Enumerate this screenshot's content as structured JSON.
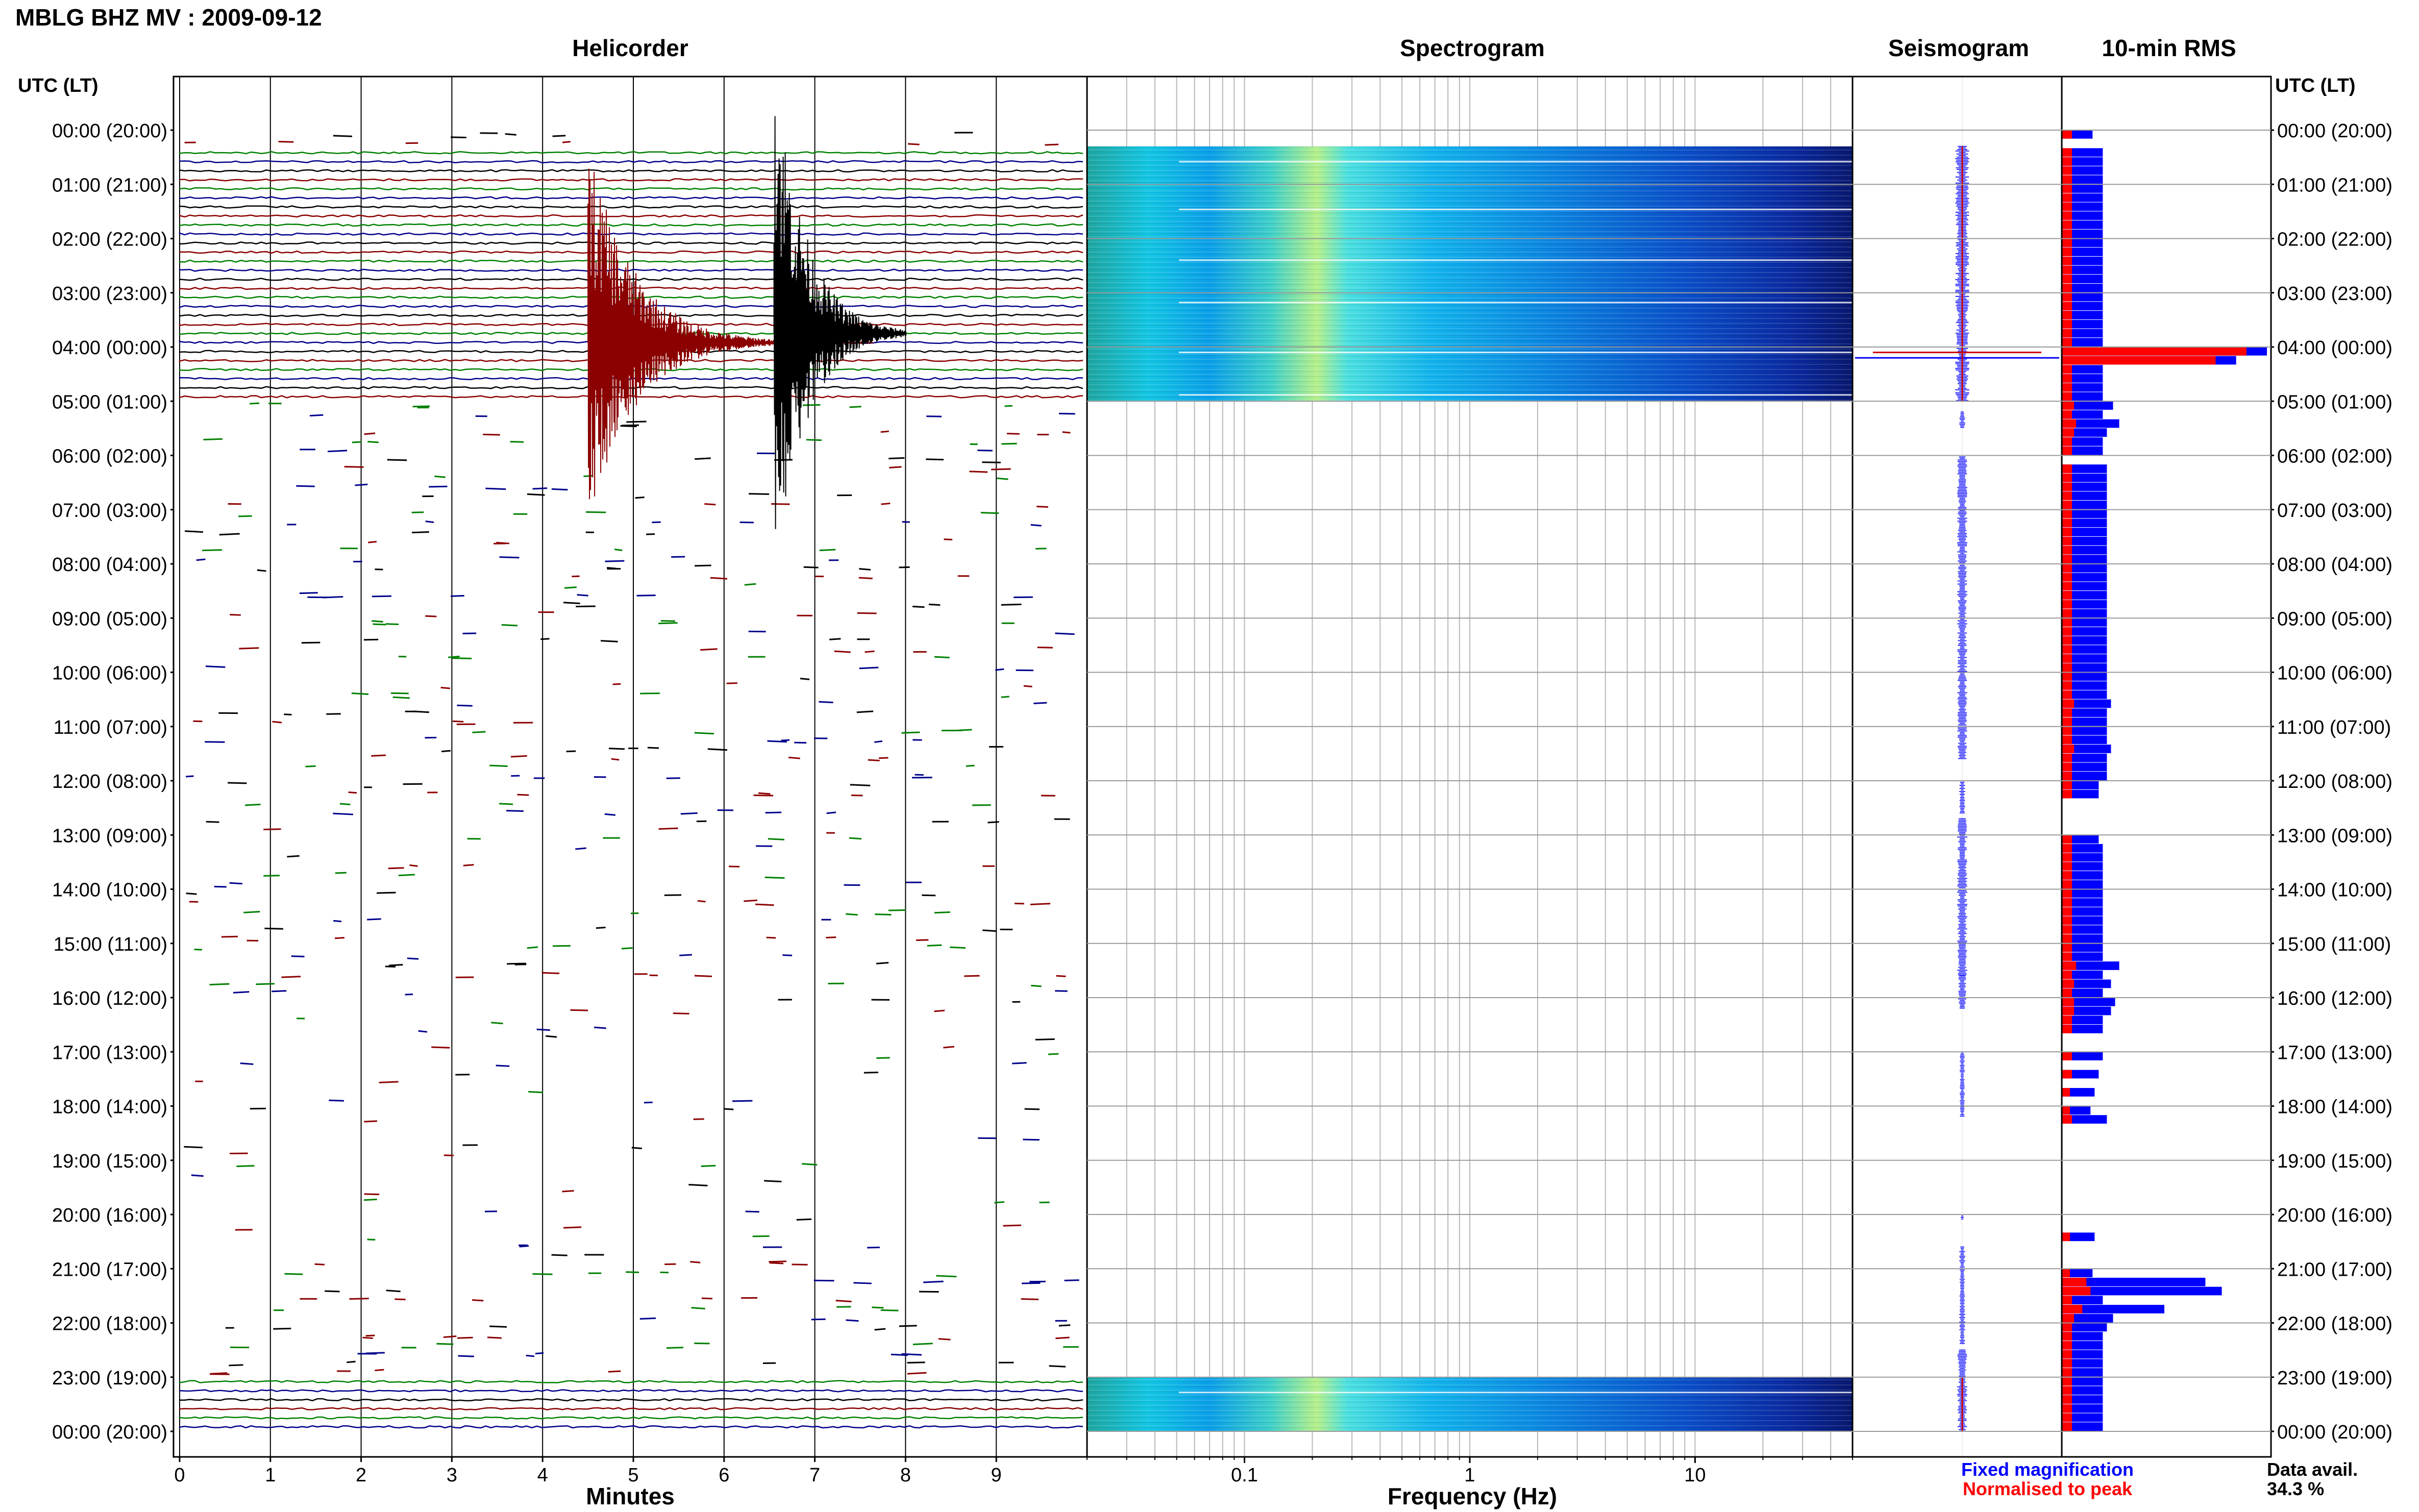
{
  "title": "MBLG BHZ MV : 2009-09-12",
  "panels": {
    "helicorder": "Helicorder",
    "spectrogram": "Spectrogram",
    "seismogram": "Seismogram",
    "rms": "10-min RMS"
  },
  "left_axis_header": "UTC (LT)",
  "right_axis_header": "UTC (LT)",
  "time_labels": [
    "00:00 (20:00)",
    "01:00 (21:00)",
    "02:00 (22:00)",
    "03:00 (23:00)",
    "04:00 (00:00)",
    "05:00 (01:00)",
    "06:00 (02:00)",
    "07:00 (03:00)",
    "08:00 (04:00)",
    "09:00 (05:00)",
    "10:00 (06:00)",
    "11:00 (07:00)",
    "12:00 (08:00)",
    "13:00 (09:00)",
    "14:00 (10:00)",
    "15:00 (11:00)",
    "16:00 (12:00)",
    "17:00 (13:00)",
    "18:00 (14:00)",
    "19:00 (15:00)",
    "20:00 (16:00)",
    "21:00 (17:00)",
    "22:00 (18:00)",
    "23:00 (19:00)",
    "00:00 (20:00)"
  ],
  "helicorder_axis": {
    "label": "Minutes",
    "ticks": [
      "0",
      "1",
      "2",
      "3",
      "4",
      "5",
      "6",
      "7",
      "8",
      "9"
    ]
  },
  "spectrogram_axis": {
    "label": "Frequency (Hz)",
    "ticks": [
      "0.1",
      "1",
      "10"
    ]
  },
  "legend": {
    "fixed": "Fixed magnification",
    "normalised": "Normalised to peak",
    "fixed_color": "#0000ff",
    "normalised_color": "#ff0000"
  },
  "data_availability": {
    "label": "Data avail.",
    "value": "34.3 %"
  },
  "trace_colors": [
    "#000000",
    "#8b0000",
    "#008000",
    "#00008b"
  ],
  "chart_data": [
    {
      "type": "helicorder",
      "x_range_minutes": [
        0,
        10
      ],
      "y_range_hours_utc": [
        0,
        24
      ],
      "continuous_data_windows_utc_hours": [
        [
          0.3,
          5.0
        ],
        [
          23.0,
          24.0
        ]
      ],
      "events": [
        {
          "utc_hour": 3.92,
          "minute": 4.5,
          "color": "#8b0000"
        },
        {
          "utc_hour": 3.75,
          "minute": 6.55,
          "color": "#000000"
        }
      ]
    },
    {
      "type": "heatmap",
      "x_label": "Frequency (Hz)",
      "x_scale": "log",
      "x_range_hz": [
        0.02,
        50
      ],
      "data_windows_utc_hours": [
        [
          0.3,
          5.0
        ],
        [
          23.0,
          24.0
        ]
      ],
      "colormap": "jet"
    },
    {
      "type": "bar",
      "orientation": "horizontal",
      "interval_minutes": 10,
      "series": [
        {
          "name": "Fixed magnification",
          "color": "#0000ff"
        },
        {
          "name": "Normalised to peak",
          "color": "#ff0000"
        }
      ],
      "fixed_magnification_relative": [
        0.15,
        0,
        0.2,
        0.2,
        0.2,
        0.2,
        0.2,
        0.2,
        0.2,
        0.2,
        0.2,
        0.2,
        0.2,
        0.2,
        0.2,
        0.2,
        0.2,
        0.2,
        0.2,
        0.2,
        0.2,
        0.2,
        0.2,
        0.2,
        1.0,
        0.85,
        0.2,
        0.2,
        0.2,
        0.2,
        0.25,
        0.2,
        0.28,
        0.22,
        0.2,
        0.2,
        0,
        0.22,
        0.22,
        0.22,
        0.22,
        0.22,
        0.22,
        0.22,
        0.22,
        0.22,
        0.22,
        0.22,
        0.22,
        0.22,
        0.22,
        0.22,
        0.22,
        0.22,
        0.22,
        0.22,
        0.22,
        0.22,
        0.22,
        0.22,
        0.22,
        0.22,
        0.22,
        0.24,
        0.22,
        0.22,
        0.22,
        0.22,
        0.24,
        0.22,
        0.22,
        0.22,
        0.18,
        0.18,
        0,
        0,
        0,
        0,
        0.18,
        0.2,
        0.2,
        0.2,
        0.2,
        0.2,
        0.2,
        0.2,
        0.2,
        0.2,
        0.2,
        0.2,
        0.2,
        0.2,
        0.28,
        0.2,
        0.24,
        0.2,
        0.26,
        0.24,
        0.2,
        0.2,
        0,
        0,
        0.2,
        0,
        0.18,
        0,
        0.16,
        0,
        0.14,
        0.22,
        0,
        0,
        0,
        0,
        0,
        0,
        0,
        0,
        0,
        0,
        0,
        0,
        0.16,
        0,
        0,
        0,
        0.15,
        0.7,
        0.78,
        0.2,
        0.5,
        0.25,
        0.22,
        0.2,
        0.2,
        0.2,
        0.2,
        0.2,
        0.2,
        0.2,
        0.2,
        0.2,
        0.2,
        0.2
      ],
      "normalised_relative": [
        0.05,
        0,
        0.05,
        0.05,
        0.05,
        0.05,
        0.05,
        0.05,
        0.05,
        0.05,
        0.05,
        0.05,
        0.05,
        0.05,
        0.05,
        0.05,
        0.05,
        0.05,
        0.05,
        0.05,
        0.05,
        0.05,
        0.05,
        0.05,
        0.9,
        0.75,
        0.05,
        0.05,
        0.05,
        0.05,
        0.06,
        0.05,
        0.07,
        0.06,
        0.05,
        0.05,
        0,
        0.05,
        0.05,
        0.05,
        0.05,
        0.05,
        0.05,
        0.05,
        0.05,
        0.05,
        0.05,
        0.05,
        0.05,
        0.05,
        0.05,
        0.05,
        0.05,
        0.05,
        0.05,
        0.05,
        0.05,
        0.05,
        0.05,
        0.05,
        0.05,
        0.05,
        0.05,
        0.06,
        0.05,
        0.05,
        0.05,
        0.05,
        0.06,
        0.05,
        0.05,
        0.05,
        0.05,
        0.05,
        0,
        0,
        0,
        0,
        0.05,
        0.05,
        0.05,
        0.05,
        0.05,
        0.05,
        0.05,
        0.05,
        0.05,
        0.05,
        0.05,
        0.05,
        0.05,
        0.05,
        0.07,
        0.05,
        0.06,
        0.05,
        0.06,
        0.06,
        0.05,
        0.05,
        0,
        0,
        0.05,
        0,
        0.05,
        0,
        0.04,
        0,
        0.04,
        0.05,
        0,
        0,
        0,
        0,
        0,
        0,
        0,
        0,
        0,
        0,
        0,
        0,
        0.04,
        0,
        0,
        0,
        0.04,
        0.12,
        0.14,
        0.05,
        0.1,
        0.06,
        0.05,
        0.05,
        0.05,
        0.05,
        0.05,
        0.05,
        0.05,
        0.05,
        0.05,
        0.05,
        0.05,
        0.05
      ]
    }
  ]
}
